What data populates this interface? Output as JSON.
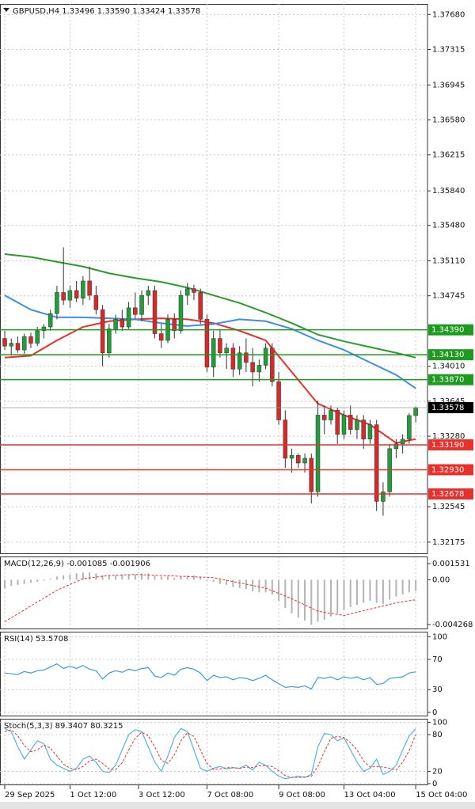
{
  "chart_data": [
    {
      "type": "candlestick",
      "title": "GBPUSD,H4  1.33496 1.33590 1.33424 1.33578",
      "open": [
        1.343,
        1.3422,
        1.3425,
        1.3418,
        1.3432,
        1.3425,
        1.3438,
        1.3442,
        1.3456,
        1.3478,
        1.347,
        1.348,
        1.3472,
        1.349,
        1.3475,
        1.346,
        1.3415,
        1.344,
        1.345,
        1.3442,
        1.3462,
        1.3455,
        1.3475,
        1.348,
        1.3435,
        1.3428,
        1.345,
        1.3438,
        1.3475,
        1.3482,
        1.3478,
        1.345,
        1.34,
        1.343,
        1.3415,
        1.342,
        1.3398,
        1.3415,
        1.3405,
        1.3395,
        1.3402,
        1.342,
        1.3385,
        1.3345,
        1.3305,
        1.3308,
        1.33,
        1.3305,
        1.327,
        1.335,
        1.3345,
        1.3355,
        1.333,
        1.335,
        1.3335,
        1.3345,
        1.3325,
        1.334,
        1.326,
        1.327,
        1.3315,
        1.332,
        1.3325,
        1.33496
      ],
      "high": [
        1.3438,
        1.343,
        1.3432,
        1.3435,
        1.3436,
        1.3442,
        1.3445,
        1.346,
        1.3485,
        1.3525,
        1.3485,
        1.349,
        1.3495,
        1.3505,
        1.3485,
        1.3465,
        1.3445,
        1.3455,
        1.346,
        1.3468,
        1.3478,
        1.348,
        1.3485,
        1.3485,
        1.3445,
        1.3455,
        1.3456,
        1.348,
        1.3488,
        1.3486,
        1.3482,
        1.3455,
        1.3438,
        1.344,
        1.3425,
        1.3425,
        1.3422,
        1.343,
        1.342,
        1.3408,
        1.3425,
        1.3425,
        1.3395,
        1.3355,
        1.3315,
        1.331,
        1.331,
        1.331,
        1.3365,
        1.336,
        1.336,
        1.3358,
        1.3355,
        1.336,
        1.335,
        1.335,
        1.3345,
        1.3345,
        1.328,
        1.332,
        1.3325,
        1.333,
        1.3352,
        1.3359
      ],
      "low": [
        1.3418,
        1.3412,
        1.3415,
        1.3414,
        1.342,
        1.3422,
        1.343,
        1.3438,
        1.345,
        1.3465,
        1.3462,
        1.3468,
        1.3465,
        1.347,
        1.3455,
        1.3401,
        1.341,
        1.3435,
        1.3438,
        1.344,
        1.345,
        1.3448,
        1.3465,
        1.343,
        1.342,
        1.3425,
        1.343,
        1.3435,
        1.3465,
        1.347,
        1.3445,
        1.3395,
        1.339,
        1.341,
        1.3398,
        1.339,
        1.3392,
        1.3395,
        1.338,
        1.3385,
        1.3398,
        1.338,
        1.334,
        1.3295,
        1.329,
        1.3295,
        1.329,
        1.3258,
        1.3265,
        1.333,
        1.334,
        1.332,
        1.3325,
        1.333,
        1.3325,
        1.3315,
        1.332,
        1.325,
        1.3245,
        1.3265,
        1.3305,
        1.331,
        1.332,
        1.33424
      ],
      "close": [
        1.3422,
        1.3425,
        1.3418,
        1.3432,
        1.3425,
        1.3438,
        1.3442,
        1.3456,
        1.3478,
        1.347,
        1.348,
        1.3472,
        1.349,
        1.3475,
        1.346,
        1.3415,
        1.344,
        1.345,
        1.3442,
        1.3462,
        1.3455,
        1.3475,
        1.348,
        1.3435,
        1.3428,
        1.345,
        1.3438,
        1.3475,
        1.3482,
        1.3478,
        1.345,
        1.34,
        1.343,
        1.3415,
        1.342,
        1.3398,
        1.3415,
        1.3405,
        1.3395,
        1.3402,
        1.342,
        1.3385,
        1.3345,
        1.3305,
        1.3308,
        1.33,
        1.3305,
        1.327,
        1.335,
        1.3345,
        1.3355,
        1.333,
        1.335,
        1.3335,
        1.3345,
        1.3325,
        1.334,
        1.326,
        1.327,
        1.3315,
        1.332,
        1.3325,
        1.33496,
        1.33578
      ],
      "up_color": "#1f9e3a",
      "down_color": "#d42a2a",
      "ma_x": [
        0,
        4,
        8,
        12,
        16,
        20,
        24,
        28,
        32,
        36,
        40,
        44,
        48,
        52,
        56,
        60,
        63
      ],
      "ma": [
        {
          "color": "#e8312a",
          "values": [
            1.341,
            1.3412,
            1.3428,
            1.3442,
            1.3448,
            1.345,
            1.3451,
            1.345,
            1.3446,
            1.3438,
            1.3428,
            1.3395,
            1.3362,
            1.335,
            1.334,
            1.3321,
            1.3325
          ]
        },
        {
          "color": "#3d8fe0",
          "values": [
            1.3475,
            1.346,
            1.3452,
            1.3452,
            1.3451,
            1.345,
            1.3446,
            1.3443,
            1.3445,
            1.345,
            1.3448,
            1.344,
            1.3428,
            1.3418,
            1.3405,
            1.3392,
            1.3378
          ]
        },
        {
          "color": "#2e9a2e",
          "values": [
            1.3518,
            1.3515,
            1.351,
            1.3505,
            1.3498,
            1.3493,
            1.3489,
            1.3483,
            1.3475,
            1.3467,
            1.3457,
            1.3446,
            1.3434,
            1.3427,
            1.3421,
            1.3415,
            1.341
          ]
        }
      ],
      "levels": [
        {
          "value": 1.3439,
          "label": "1.34390",
          "color": "#1e9a1e"
        },
        {
          "value": 1.3413,
          "label": "1.34130",
          "color": "#1e9a1e"
        },
        {
          "value": 1.3387,
          "label": "1.33870",
          "color": "#1e9a1e"
        },
        {
          "value": 1.3319,
          "label": "1.33190",
          "color": "#e8312a"
        },
        {
          "value": 1.3293,
          "label": "1.32930",
          "color": "#e8312a"
        },
        {
          "value": 1.32678,
          "label": "1.32678",
          "color": "#e8312a"
        }
      ],
      "current_price": 1.33578,
      "ylim": [
        1.3205,
        1.3779
      ],
      "yticks": [
        {
          "value": 1.3768,
          "label": "1.37680"
        },
        1.37315,
        1.36945,
        {
          "value": 1.3658,
          "label": "1.36580"
        },
        1.36215,
        {
          "value": 1.3584,
          "label": "1.35840"
        },
        {
          "value": 1.3548,
          "label": "1.35480"
        },
        {
          "value": 1.3511,
          "label": "1.35110"
        },
        1.34745,
        {
          "value": 1.3401,
          "label": "1.34010"
        },
        1.33645,
        {
          "value": 1.3328,
          "label": "1.33280"
        },
        1.32545,
        1.32175
      ],
      "xticks": [
        {
          "value": 0,
          "label": "29 Sep 2025"
        },
        {
          "value": 10,
          "label": "1 Oct 12:00"
        },
        {
          "value": 20.5,
          "label": "3 Oct 12:00"
        },
        {
          "value": 31,
          "label": "7 Oct 08:00"
        },
        {
          "value": 42,
          "label": "9 Oct 08:00"
        },
        {
          "value": 52,
          "label": "13 Oct 04:00"
        },
        {
          "value": 63,
          "label": "15 Oct 04:00"
        }
      ],
      "grid": true
    },
    {
      "type": "macd",
      "title": "MACD(12,26,9) -0.001085 -0.001906",
      "histogram": [
        -0.0008,
        -0.0006,
        -0.0005,
        -0.0004,
        -0.0003,
        -0.0002,
        -0.0001,
        0.0001,
        0.0003,
        0.0004,
        0.0005,
        0.0006,
        0.0007,
        0.0007,
        0.0006,
        0.0004,
        0.0004,
        0.0004,
        0.0005,
        0.0005,
        0.0005,
        0.0006,
        0.0006,
        0.0004,
        0.0003,
        0.0003,
        0.0002,
        0.0003,
        0.0004,
        0.0004,
        0.0003,
        -0.0001,
        -0.0002,
        -0.0004,
        -0.0005,
        -0.0007,
        -0.0008,
        -0.0009,
        -0.0011,
        -0.0012,
        -0.0012,
        -0.0014,
        -0.002,
        -0.0027,
        -0.0032,
        -0.0036,
        -0.0039,
        -0.0043,
        -0.004,
        -0.0038,
        -0.0035,
        -0.0032,
        -0.0029,
        -0.0026,
        -0.0024,
        -0.0022,
        -0.002,
        -0.0022,
        -0.0023,
        -0.0019,
        -0.0016,
        -0.0014,
        -0.0012,
        -0.001085
      ],
      "hist_color": "#b4b4b4",
      "signal_x": [
        0,
        4,
        8,
        12,
        16,
        20,
        24,
        28,
        32,
        36,
        40,
        44,
        48,
        52,
        56,
        60,
        63
      ],
      "signal": [
        -0.004,
        -0.0025,
        -0.001,
        0.0001,
        0.0004,
        0.0005,
        0.0004,
        0.0003,
        0.0002,
        -0.0003,
        -0.0008,
        -0.0018,
        -0.003,
        -0.0034,
        -0.0028,
        -0.0022,
        -0.001906
      ],
      "signal_color": "#e8312a",
      "ylim": [
        -0.00472,
        0.00221
      ],
      "yticks": [
        0.001531,
        {
          "value": 0,
          "label": "0.00"
        },
        -0.004268
      ],
      "grid": false
    },
    {
      "type": "line",
      "title": "RSI(14) 53.5708",
      "values": [
        52,
        51,
        50,
        54,
        52,
        55,
        56,
        60,
        64,
        58,
        61,
        58,
        62,
        57,
        55,
        44,
        52,
        55,
        53,
        57,
        55,
        58,
        59,
        48,
        46,
        52,
        49,
        57,
        59,
        57,
        52,
        42,
        49,
        46,
        47,
        43,
        46,
        45,
        42,
        45,
        49,
        43,
        38,
        33,
        34,
        33,
        35,
        31,
        46,
        45,
        47,
        43,
        47,
        45,
        47,
        43,
        46,
        37,
        38,
        45,
        46,
        47,
        52,
        53.5708
      ],
      "color": "#3d9be0",
      "ylim": [
        -5.3,
        106.6
      ],
      "yticks": [
        100,
        70,
        30,
        0
      ],
      "grid": true
    },
    {
      "type": "stochastic",
      "title": "Stoch(5,3,3) 89.3407 80.3215",
      "main": [
        90,
        85,
        60,
        40,
        55,
        70,
        65,
        40,
        30,
        25,
        20,
        25,
        40,
        45,
        35,
        20,
        18,
        30,
        55,
        80,
        88,
        85,
        60,
        35,
        20,
        45,
        75,
        90,
        85,
        55,
        25,
        20,
        25,
        28,
        24,
        26,
        25,
        30,
        22,
        35,
        30,
        20,
        12,
        8,
        10,
        12,
        10,
        15,
        60,
        82,
        80,
        70,
        75,
        55,
        35,
        20,
        25,
        40,
        15,
        20,
        30,
        55,
        78,
        89.3407
      ],
      "signal": [
        85,
        88,
        78,
        62,
        52,
        55,
        63,
        58,
        45,
        32,
        25,
        23,
        28,
        37,
        40,
        33,
        24,
        23,
        34,
        55,
        74,
        84,
        78,
        60,
        38,
        33,
        47,
        70,
        83,
        77,
        55,
        33,
        23,
        24,
        26,
        26,
        25,
        27,
        26,
        29,
        29,
        28,
        21,
        13,
        10,
        10,
        11,
        12,
        28,
        52,
        74,
        77,
        75,
        67,
        55,
        37,
        27,
        28,
        27,
        25,
        22,
        35,
        54,
        80.3215
      ],
      "main_color": "#4fb6dc",
      "signal_color": "#e8312a",
      "ylim": [
        -2.7,
        105.9
      ],
      "yticks": [
        100,
        80,
        20,
        0
      ],
      "grid": true
    }
  ]
}
